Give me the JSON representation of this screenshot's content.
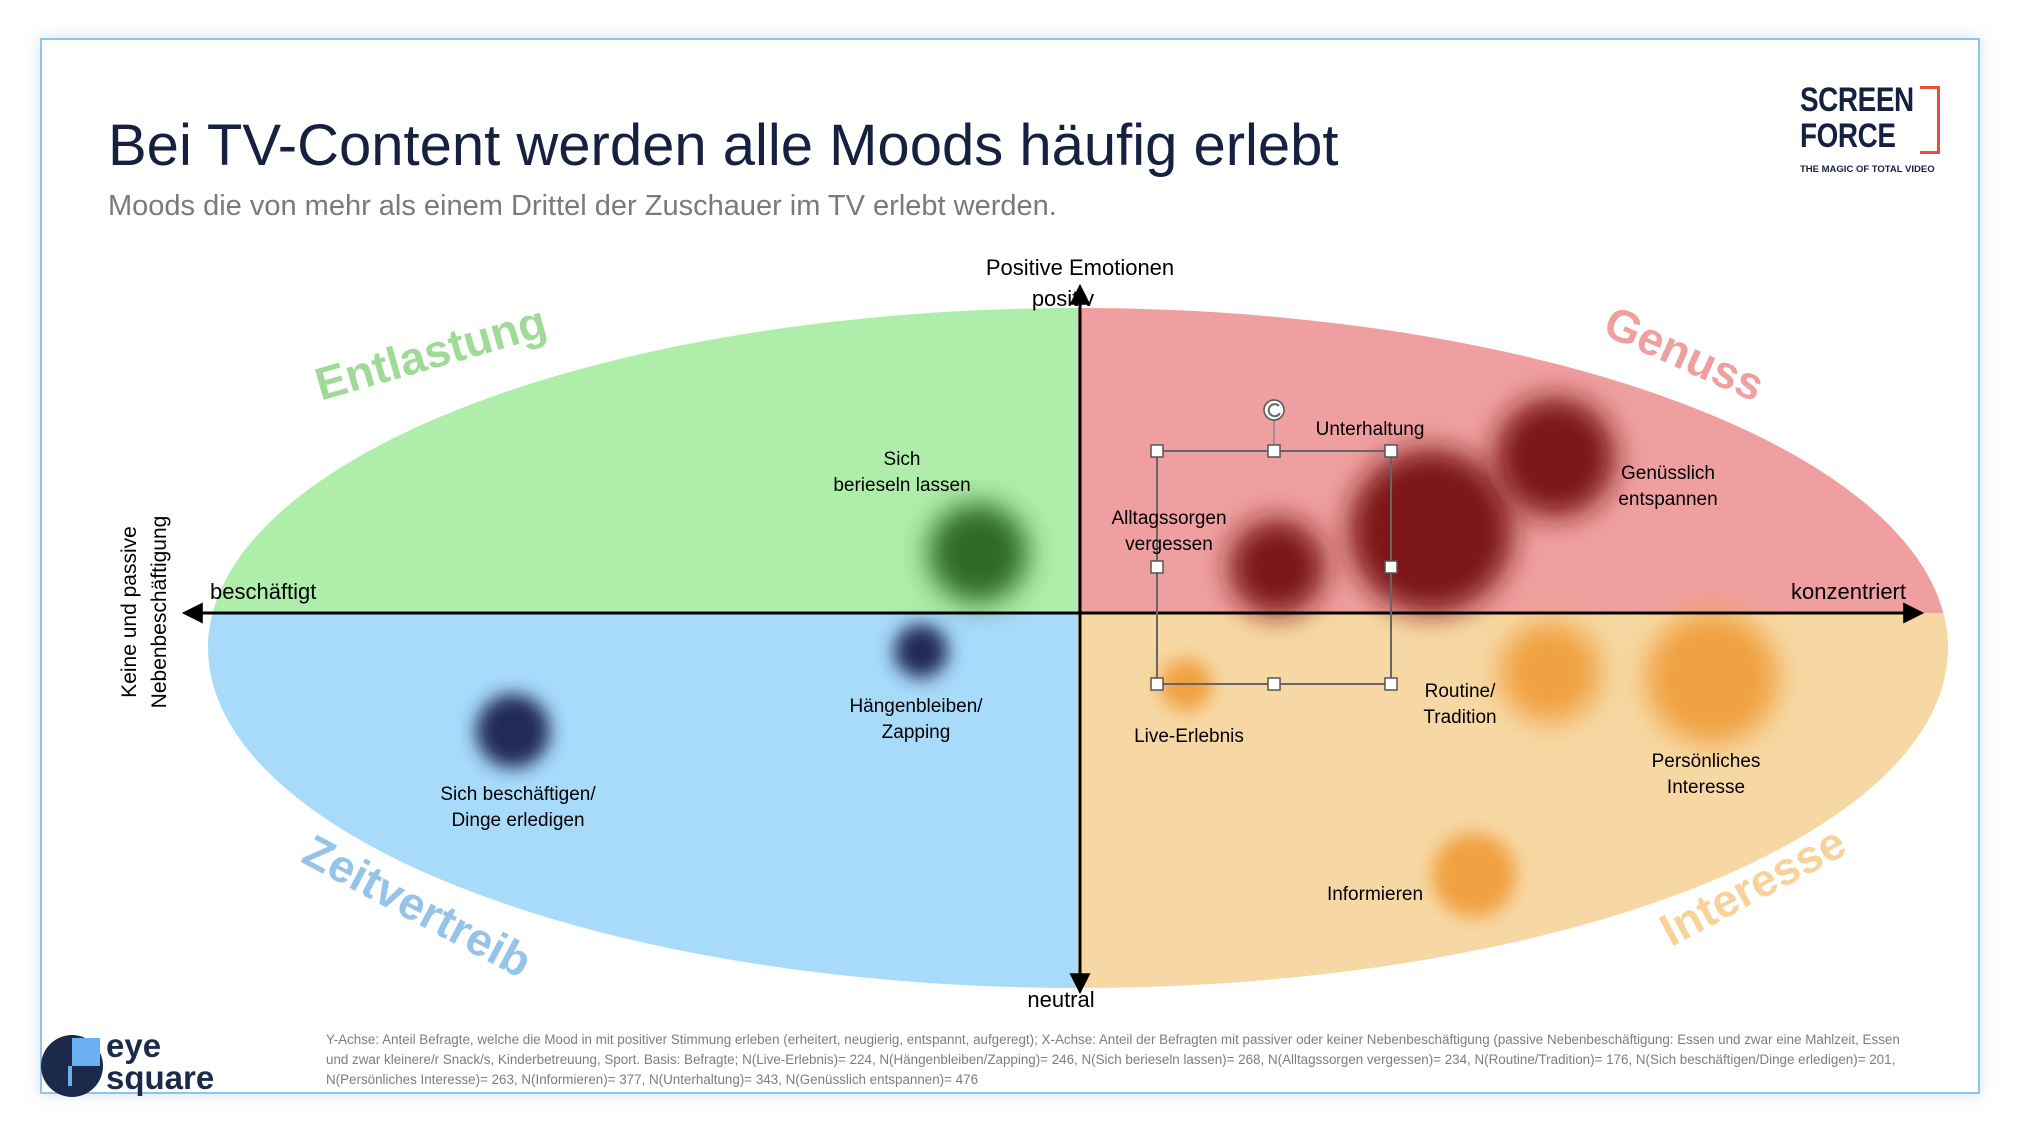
{
  "title": "Bei TV-Content werden alle Moods häufig erlebt",
  "subtitle": "Moods die von mehr als einem Drittel der Zuschauer im TV erlebt werden.",
  "logos": {
    "screenforce_line1": "SCREEN",
    "screenforce_line2": "FORCE",
    "screenforce_tagline": "THE MAGIC OF TOTAL VIDEO",
    "eyesquare_line1": "eye",
    "eyesquare_line2": "square"
  },
  "axes": {
    "y_title": "Positive Emotionen",
    "y_top": "positiv",
    "y_bottom": "neutral",
    "x_left": "beschäftigt",
    "x_right": "konzentriert",
    "x_title_line1": "Keine und passive",
    "x_title_line2": "Nebenbeschäftigung"
  },
  "quadrants": [
    {
      "label": "Entlastung",
      "color": "#aeeeaa",
      "label_color": "#9fdb97"
    },
    {
      "label": "Genuss",
      "color": "#ef9f9f",
      "label_color": "#ef9f9f"
    },
    {
      "label": "Zeitvertreib",
      "color": "#a8dbfa",
      "label_color": "#94c4e8"
    },
    {
      "label": "Interesse",
      "color": "#f7d8a4",
      "label_color": "#f7d39a"
    }
  ],
  "moods": [
    {
      "line1": "Sich",
      "line2": "berieseln lassen",
      "color": "#2f6b26"
    },
    {
      "line1": "Hängenbleiben/",
      "line2": "Zapping",
      "color": "#222a55"
    },
    {
      "line1": "Sich beschäftigen/",
      "line2": "Dinge erledigen",
      "color": "#222a55"
    },
    {
      "line1": "Unterhaltung",
      "line2": "",
      "color": "#7d1616"
    },
    {
      "line1": "Genüsslich",
      "line2": "entspannen",
      "color": "#7d1616"
    },
    {
      "line1": "Alltagssorgen",
      "line2": "vergessen",
      "color": "#7d1616"
    },
    {
      "line1": "Live-Erlebnis",
      "line2": "",
      "color": "#f0a040"
    },
    {
      "line1": "Routine/",
      "line2": "Tradition",
      "color": "#f0a040"
    },
    {
      "line1": "Persönliches",
      "line2": "Interesse",
      "color": "#f0a040"
    },
    {
      "line1": "Informieren",
      "line2": "",
      "color": "#f0a040"
    }
  ],
  "footnote": "Y-Achse: Anteil Befragte, welche die Mood in mit positiver Stimmung erleben (erheitert, neugierig, entspannt, aufgeregt); X-Achse: Anteil der Befragten mit passiver oder keiner Nebenbeschäftigung (passive Nebenbeschäftigung: Essen und zwar eine Mahlzeit, Essen und zwar kleinere/r Snack/s, Kinderbetreuung, Sport. Basis: Befragte; N(Live-Erlebnis)= 224, N(Hängenbleiben/Zapping)= 246, N(Sich berieseln lassen)= 268, N(Alltagssorgen vergessen)= 234, N(Routine/Tradition)= 176, N(Sich beschäftigen/Dinge erledigen)= 201, N(Persönliches Interesse)= 263, N(Informieren)= 377, N(Unterhaltung)= 343, N(Genüsslich entspannen)= 476"
}
